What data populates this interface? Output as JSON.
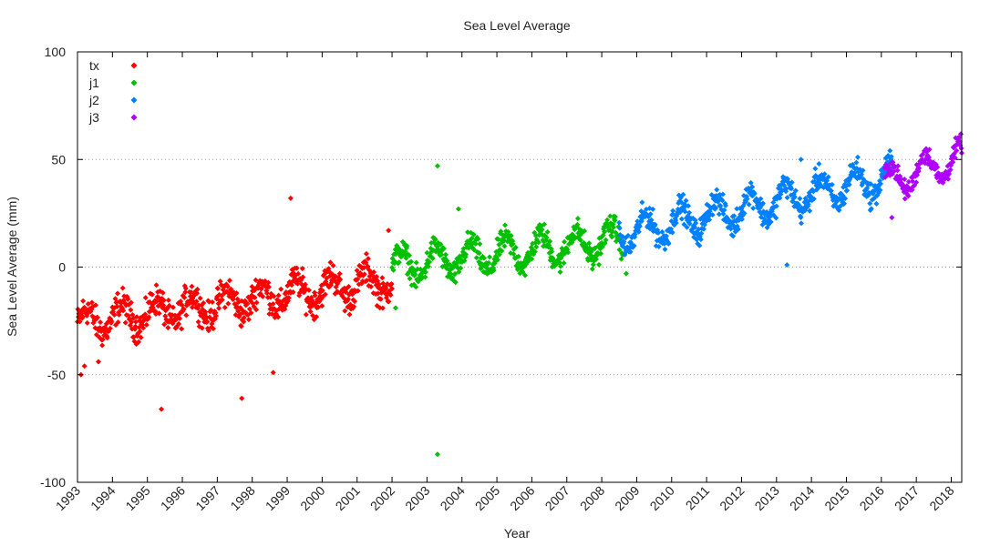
{
  "chart_data": {
    "type": "scatter",
    "title": "Sea Level Average",
    "xlabel": "Year",
    "ylabel": "Sea Level Average (mm)",
    "xlim": [
      1993.0,
      2018.3
    ],
    "ylim": [
      -100,
      100
    ],
    "x_ticks": [
      "1993",
      "1994",
      "1995",
      "1996",
      "1997",
      "1998",
      "1999",
      "2000",
      "2001",
      "2002",
      "2003",
      "2004",
      "2005",
      "2006",
      "2007",
      "2008",
      "2009",
      "2010",
      "2011",
      "2012",
      "2013",
      "2014",
      "2015",
      "2016",
      "2017",
      "2018"
    ],
    "y_ticks": [
      "100",
      "50",
      "0",
      "-50",
      "-100"
    ],
    "grid": "horizontal dotted at y=50, 0, -50",
    "legend_position": "top-left",
    "marker": "diamond",
    "series": [
      {
        "name": "tx",
        "color": "#ff0000",
        "x_range": [
          1993.0,
          2002.0
        ],
        "trend_start": -26,
        "trend_end": -6,
        "seasonal_amplitude": 6,
        "noise": 5,
        "outliers": [
          [
            1993.1,
            -50
          ],
          [
            1993.2,
            -46
          ],
          [
            1993.6,
            -44
          ],
          [
            1995.4,
            -66
          ],
          [
            1997.7,
            -61
          ],
          [
            1998.6,
            -49
          ],
          [
            1999.1,
            32
          ],
          [
            2001.9,
            17
          ]
        ]
      },
      {
        "name": "j1",
        "color": "#00c000",
        "x_range": [
          2002.0,
          2008.6
        ],
        "trend_start": 0,
        "trend_end": 13,
        "seasonal_amplitude": 7,
        "noise": 4,
        "outliers": [
          [
            2002.1,
            -19
          ],
          [
            2003.3,
            47
          ],
          [
            2003.3,
            -87
          ],
          [
            2003.9,
            27
          ],
          [
            2008.7,
            -3
          ]
        ]
      },
      {
        "name": "j2",
        "color": "#0080ff",
        "x_range": [
          2008.5,
          2016.3
        ],
        "trend_start": 15,
        "trend_end": 42,
        "seasonal_amplitude": 7,
        "noise": 4,
        "outliers": [
          [
            2013.3,
            1
          ],
          [
            2013.7,
            50
          ]
        ]
      },
      {
        "name": "j3",
        "color": "#b000ff",
        "x_range": [
          2016.1,
          2018.3
        ],
        "trend_start": 39,
        "trend_end": 51,
        "seasonal_amplitude": 7,
        "noise": 3,
        "outliers": [
          [
            2016.3,
            23
          ]
        ]
      }
    ]
  }
}
